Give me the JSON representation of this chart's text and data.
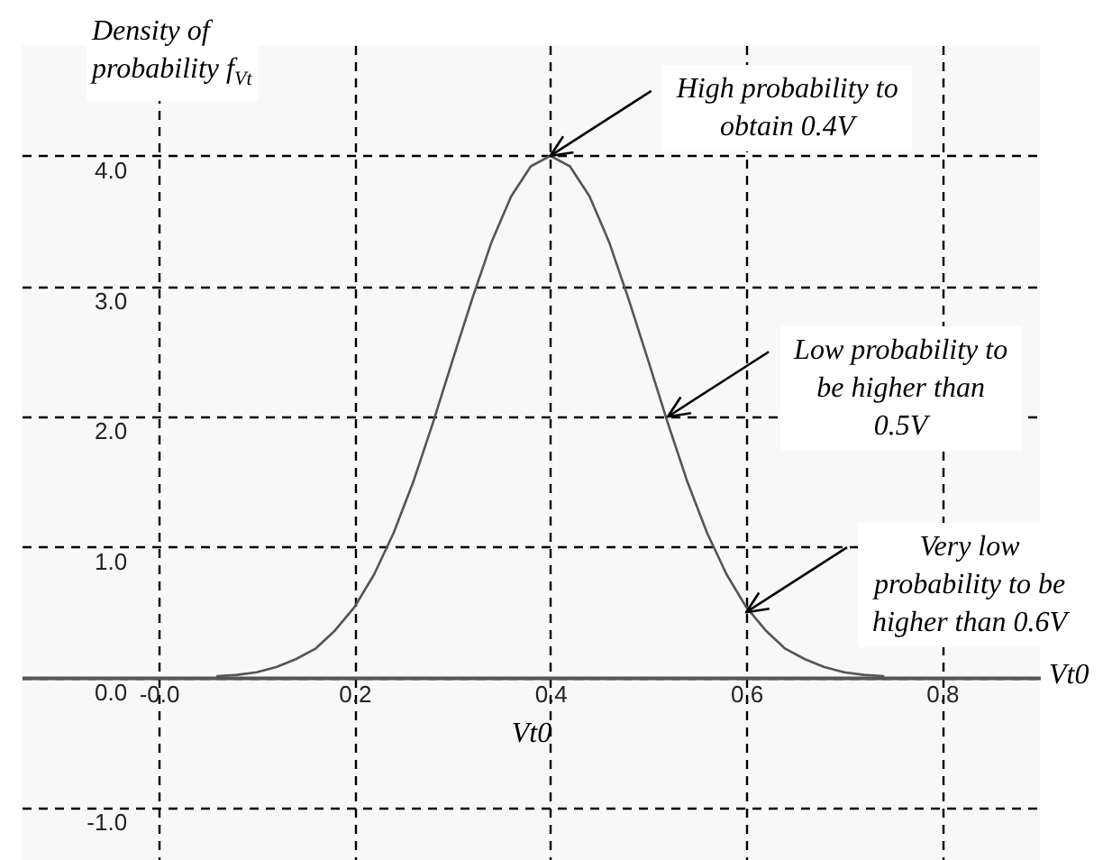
{
  "chart_data": {
    "type": "line",
    "ylabel": "Density of\nprobability f$_{Vt}$",
    "xlabel": "Vt0",
    "annotations": [
      "Vt0",
      {
        "text": "High probability to\nobtain 0.4V",
        "x": 0.4,
        "y": 4.0
      },
      {
        "text": "Low probability to\nbe higher than\n0.5V",
        "x": 0.52,
        "y": 2.0
      },
      {
        "text": "Very low\nprobability to be\nhigher than 0.6V",
        "x": 0.6,
        "y": 0.5
      }
    ],
    "x": [
      0.06,
      0.08,
      0.1,
      0.12,
      0.14,
      0.16,
      0.18,
      0.2,
      0.22,
      0.24,
      0.26,
      0.28,
      0.3,
      0.32,
      0.34,
      0.36,
      0.38,
      0.4,
      0.42,
      0.44,
      0.46,
      0.48,
      0.5,
      0.52,
      0.54,
      0.56,
      0.58,
      0.6,
      0.62,
      0.64,
      0.66,
      0.68,
      0.7,
      0.72,
      0.74
    ],
    "series": [
      {
        "color": "#555555",
        "values": [
          0.01,
          0.02,
          0.04,
          0.08,
          0.14,
          0.22,
          0.36,
          0.54,
          0.79,
          1.11,
          1.5,
          1.95,
          2.43,
          2.9,
          3.34,
          3.69,
          3.92,
          4.0,
          3.92,
          3.69,
          3.34,
          2.9,
          2.43,
          1.95,
          1.5,
          1.11,
          0.79,
          0.54,
          0.36,
          0.22,
          0.14,
          0.08,
          0.04,
          0.02,
          0.01
        ]
      }
    ],
    "xlim": [
      -0.14,
      0.9
    ],
    "ylim": [
      -1.4,
      4.85
    ],
    "xticks": [
      {
        "value": 0,
        "label": "-0.0"
      },
      0.2,
      0.4,
      0.6,
      0.8
    ],
    "yticks": [
      {
        "value": -1,
        "label": "-1.0"
      },
      {
        "value": 0,
        "label": "0.0"
      },
      {
        "value": 1,
        "label": "1.0"
      },
      {
        "value": 2,
        "label": "2.0"
      },
      {
        "value": 3,
        "label": "3.0"
      },
      {
        "value": 4,
        "label": "4.0"
      }
    ],
    "grid": true
  }
}
